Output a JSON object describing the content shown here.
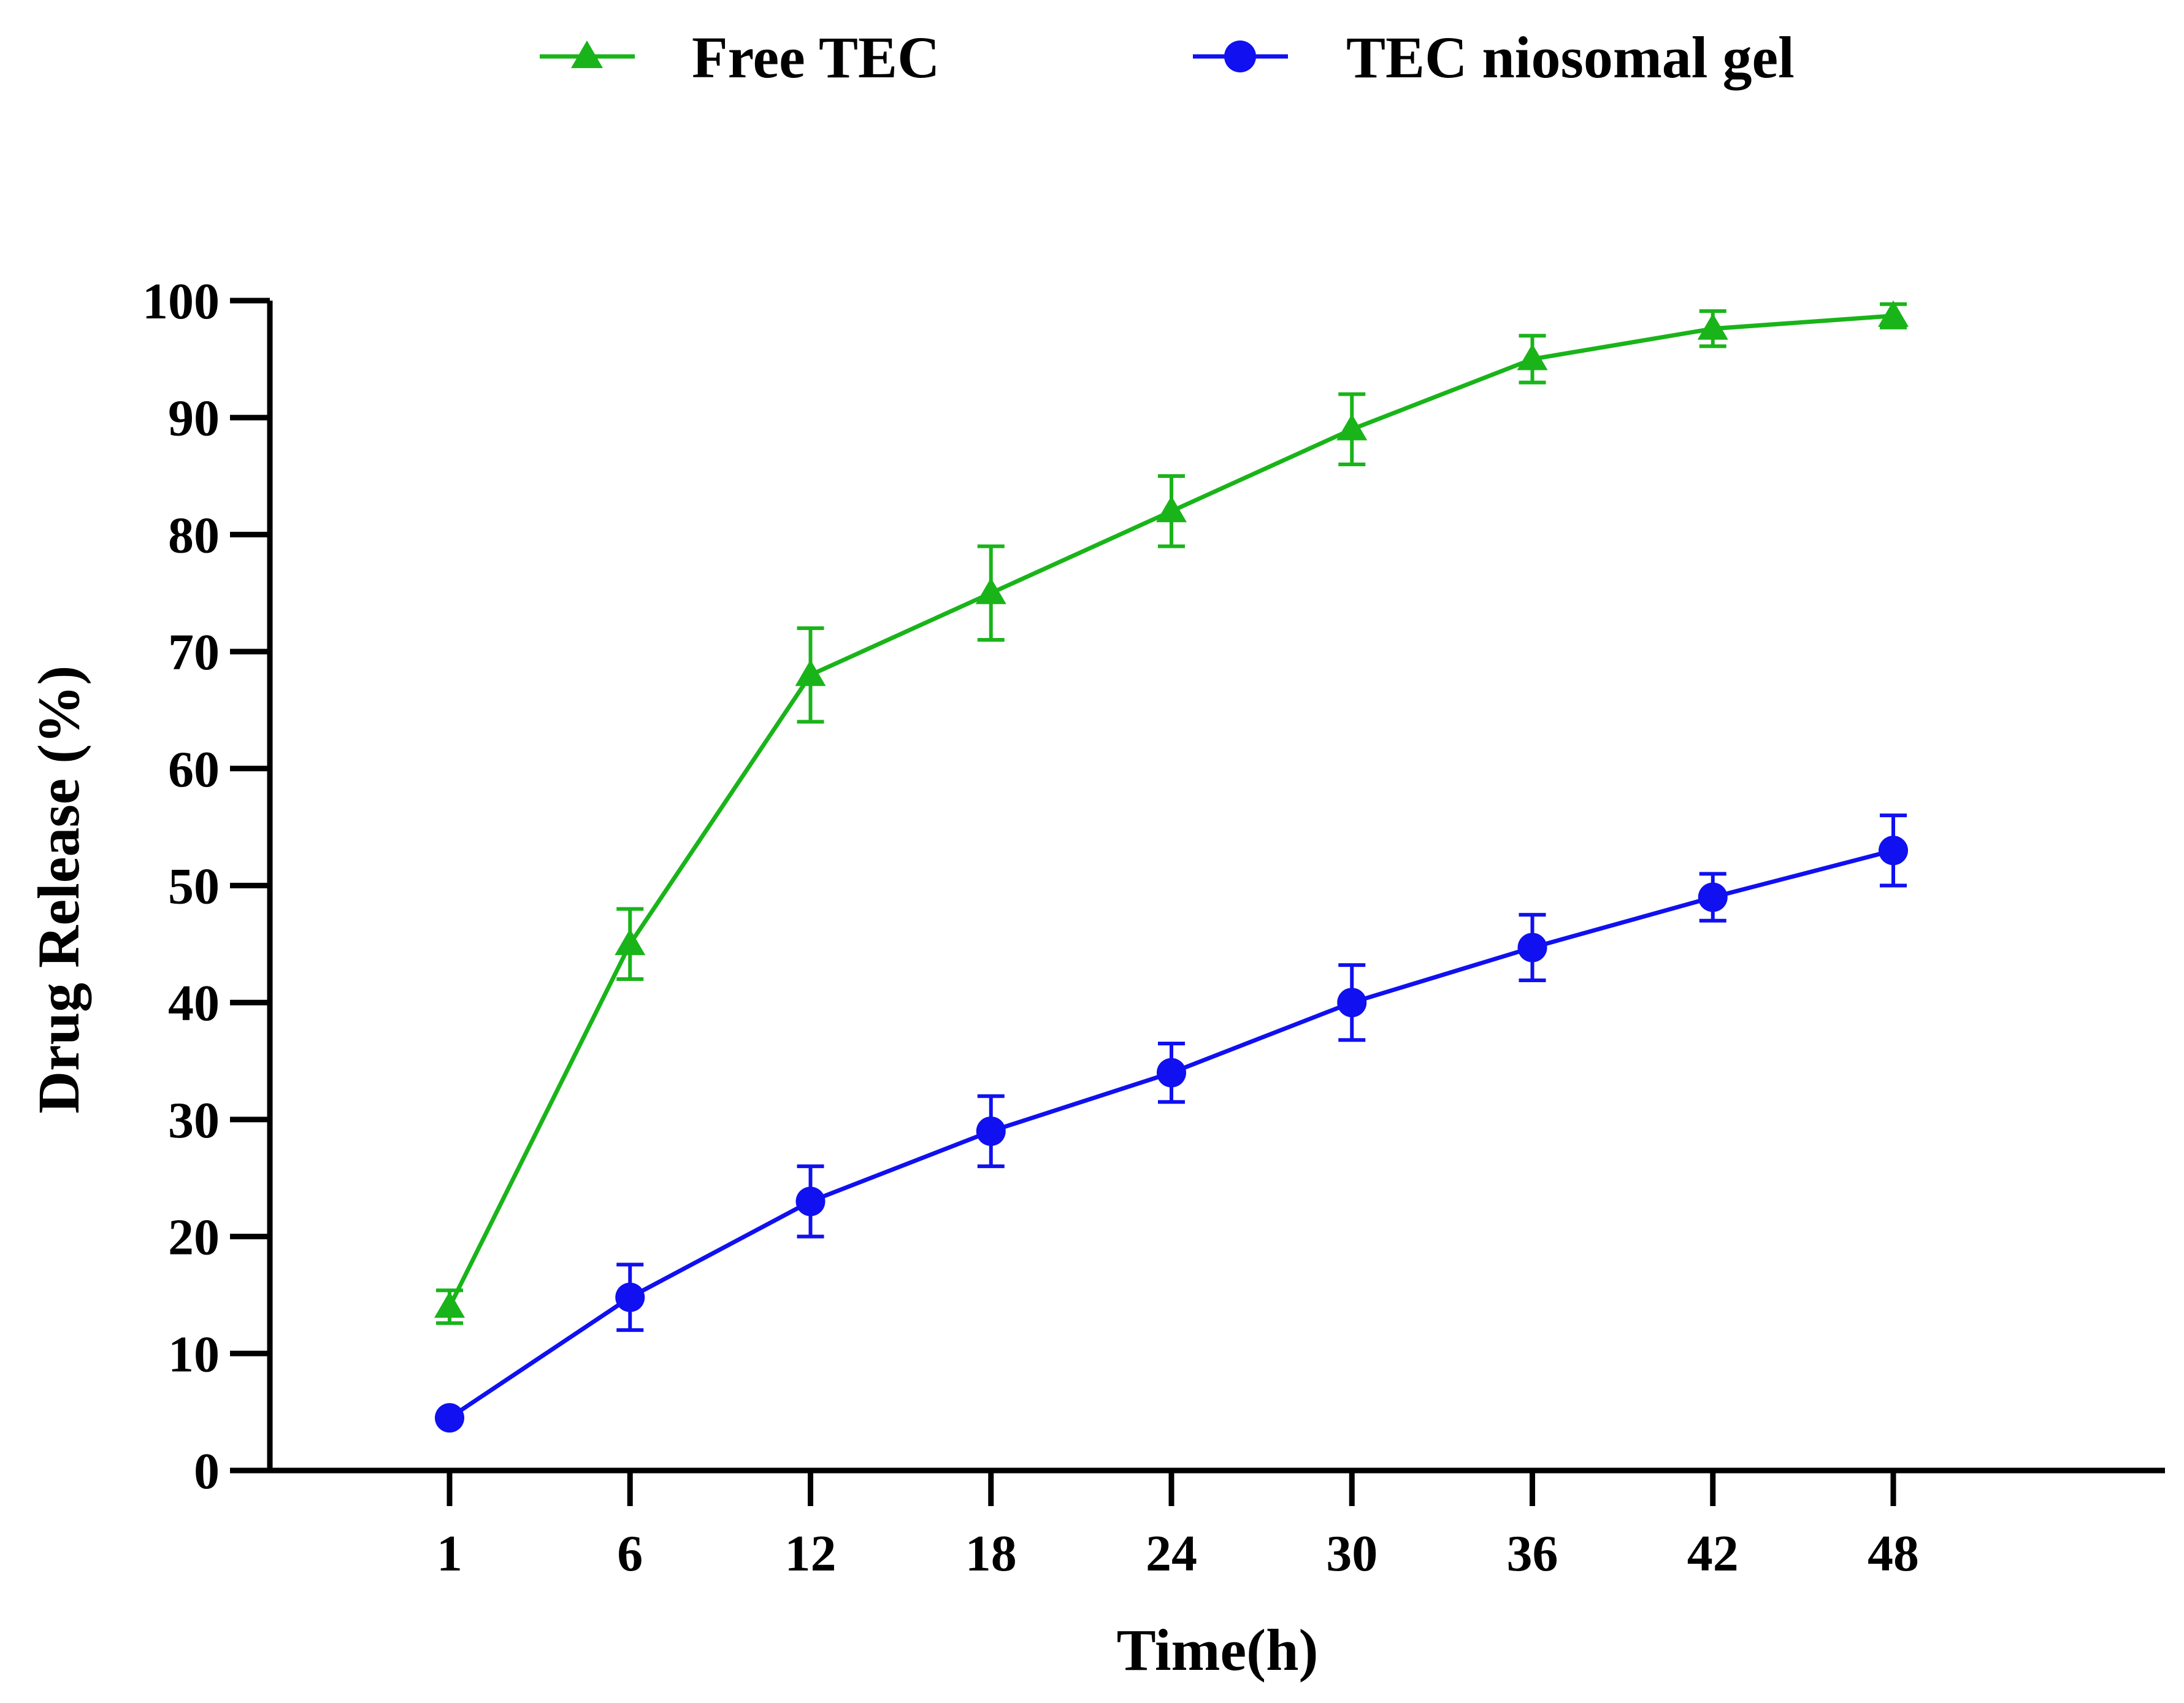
{
  "chart_data": {
    "type": "line",
    "title": "",
    "xlabel": "Time(h)",
    "ylabel": "Drug Release (%)",
    "categories": [
      "1",
      "6",
      "12",
      "18",
      "24",
      "30",
      "36",
      "42",
      "48"
    ],
    "y_ticks": [
      "0",
      "10",
      "20",
      "30",
      "40",
      "50",
      "60",
      "70",
      "80",
      "90",
      "100"
    ],
    "ylim": [
      0,
      100
    ],
    "grid": false,
    "legend_position": "top-center",
    "series": [
      {
        "name": "Free TEC",
        "color": "#19B419",
        "marker": "triangle",
        "values": [
          14,
          45,
          68,
          75,
          82,
          89,
          95,
          97.6,
          98.7
        ],
        "errors": [
          1.4,
          3,
          4,
          4,
          3,
          3,
          2,
          1.5,
          1
        ]
      },
      {
        "name": "TEC niosomal gel",
        "color": "#1010F0",
        "marker": "circle",
        "values": [
          4.5,
          14.8,
          23,
          29,
          34,
          40,
          44.7,
          49,
          53
        ],
        "errors": [
          0,
          2.8,
          3,
          3,
          2.5,
          3.2,
          2.8,
          2,
          3
        ]
      }
    ]
  }
}
